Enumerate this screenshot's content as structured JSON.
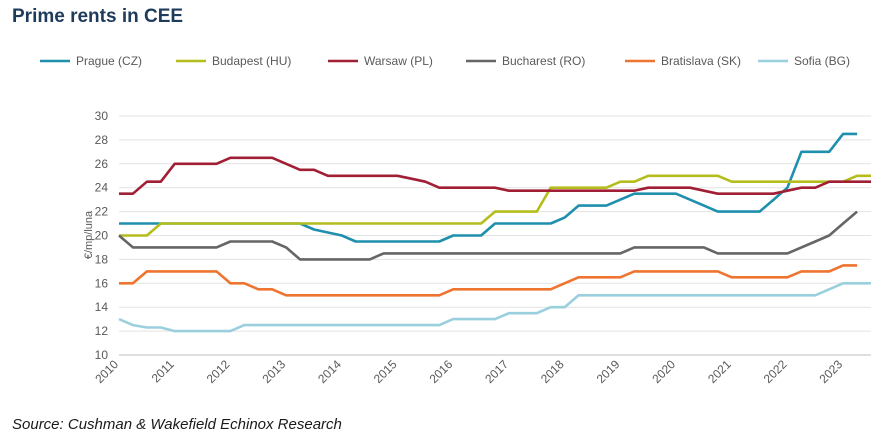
{
  "title": "Prime rents in CEE",
  "source": "Source: Cushman & Wakefield Echinox Research",
  "chart_data": {
    "type": "line",
    "ylabel": "€/mp/luna",
    "xlabel": "",
    "ylim": [
      10,
      30
    ],
    "xlim": [
      2010,
      2023.5
    ],
    "y_ticks": [
      10,
      12,
      14,
      16,
      18,
      20,
      22,
      24,
      26,
      28,
      30
    ],
    "x_ticks": [
      2010,
      2011,
      2012,
      2013,
      2014,
      2015,
      2016,
      2017,
      2018,
      2019,
      2020,
      2021,
      2022,
      2023
    ],
    "grid": "horizontal",
    "legend_position": "top",
    "series": [
      {
        "name": "Prague (CZ)",
        "color": "#1f8fae",
        "points": [
          [
            2010,
            21
          ],
          [
            2010.75,
            21
          ],
          [
            2010.75,
            21
          ],
          [
            2013.25,
            21
          ],
          [
            2013.5,
            20.5
          ],
          [
            2014,
            20
          ],
          [
            2014.25,
            19.5
          ],
          [
            2015.75,
            19.5
          ],
          [
            2016,
            20
          ],
          [
            2016.5,
            20
          ],
          [
            2016.75,
            21
          ],
          [
            2017.75,
            21
          ],
          [
            2018,
            21.5
          ],
          [
            2018.25,
            22.5
          ],
          [
            2018.75,
            22.5
          ],
          [
            2019.25,
            23.5
          ],
          [
            2020,
            23.5
          ],
          [
            2020.5,
            22.5
          ],
          [
            2020.75,
            22
          ],
          [
            2021.5,
            22
          ],
          [
            2021.75,
            23
          ],
          [
            2022,
            24
          ],
          [
            2022.25,
            27
          ],
          [
            2022.75,
            27
          ],
          [
            2023,
            28.5
          ],
          [
            2023.25,
            28.5
          ]
        ]
      },
      {
        "name": "Budapest (HU)",
        "color": "#b5bd1c",
        "points": [
          [
            2010,
            20
          ],
          [
            2010.5,
            20
          ],
          [
            2010.75,
            21
          ],
          [
            2016.5,
            21
          ],
          [
            2016.75,
            22
          ],
          [
            2017.5,
            22
          ],
          [
            2017.75,
            24
          ],
          [
            2018.75,
            24
          ],
          [
            2019,
            24.5
          ],
          [
            2019.25,
            24.5
          ],
          [
            2019.5,
            25
          ],
          [
            2020.75,
            25
          ],
          [
            2021,
            24.5
          ],
          [
            2023,
            24.5
          ],
          [
            2023.25,
            25
          ],
          [
            2023.5,
            25
          ]
        ]
      },
      {
        "name": "Warsaw (PL)",
        "color": "#a01f35",
        "points": [
          [
            2010,
            23.5
          ],
          [
            2010.25,
            23.5
          ],
          [
            2010.5,
            24.5
          ],
          [
            2010.75,
            24.5
          ],
          [
            2011,
            26
          ],
          [
            2011.75,
            26
          ],
          [
            2012,
            26.5
          ],
          [
            2012.75,
            26.5
          ],
          [
            2013,
            26
          ],
          [
            2013.25,
            25.5
          ],
          [
            2013.5,
            25.5
          ],
          [
            2013.75,
            25
          ],
          [
            2015,
            25
          ],
          [
            2015.25,
            24.75
          ],
          [
            2015.5,
            24.5
          ],
          [
            2015.75,
            24
          ],
          [
            2016.75,
            24
          ],
          [
            2017,
            23.75
          ],
          [
            2019.25,
            23.75
          ],
          [
            2019.5,
            24
          ],
          [
            2020.25,
            24
          ],
          [
            2020.5,
            23.75
          ],
          [
            2020.75,
            23.5
          ],
          [
            2021.75,
            23.5
          ],
          [
            2022,
            23.75
          ],
          [
            2022.25,
            24
          ],
          [
            2022.5,
            24
          ],
          [
            2022.75,
            24.5
          ],
          [
            2023.5,
            24.5
          ]
        ]
      },
      {
        "name": "Bucharest (RO)",
        "color": "#666666",
        "points": [
          [
            2010,
            20
          ],
          [
            2010.25,
            19
          ],
          [
            2011.75,
            19
          ],
          [
            2012,
            19.5
          ],
          [
            2012.75,
            19.5
          ],
          [
            2013,
            19
          ],
          [
            2013.25,
            18
          ],
          [
            2014.5,
            18
          ],
          [
            2014.75,
            18.5
          ],
          [
            2019,
            18.5
          ],
          [
            2019.25,
            19
          ],
          [
            2020.5,
            19
          ],
          [
            2020.75,
            18.5
          ],
          [
            2022,
            18.5
          ],
          [
            2022.5,
            19.5
          ],
          [
            2022.75,
            20
          ],
          [
            2023,
            21
          ],
          [
            2023.25,
            22
          ]
        ]
      },
      {
        "name": "Bratislava (SK)",
        "color": "#ee7430",
        "points": [
          [
            2010,
            16
          ],
          [
            2010.25,
            16
          ],
          [
            2010.5,
            17
          ],
          [
            2011.75,
            17
          ],
          [
            2012,
            16
          ],
          [
            2012.25,
            16
          ],
          [
            2012.5,
            15.5
          ],
          [
            2012.75,
            15.5
          ],
          [
            2013,
            15
          ],
          [
            2015.75,
            15
          ],
          [
            2016,
            15.5
          ],
          [
            2017.75,
            15.5
          ],
          [
            2018,
            16
          ],
          [
            2018.25,
            16.5
          ],
          [
            2019,
            16.5
          ],
          [
            2019.25,
            17
          ],
          [
            2020.75,
            17
          ],
          [
            2021,
            16.5
          ],
          [
            2022,
            16.5
          ],
          [
            2022.25,
            17
          ],
          [
            2022.75,
            17
          ],
          [
            2023,
            17.5
          ],
          [
            2023.25,
            17.5
          ]
        ]
      },
      {
        "name": "Sofia (BG)",
        "color": "#9ad0de",
        "points": [
          [
            2010,
            13
          ],
          [
            2010.25,
            12.5
          ],
          [
            2010.5,
            12.3
          ],
          [
            2010.75,
            12.3
          ],
          [
            2011,
            12
          ],
          [
            2012,
            12
          ],
          [
            2012.25,
            12.5
          ],
          [
            2015.75,
            12.5
          ],
          [
            2016,
            13
          ],
          [
            2016.75,
            13
          ],
          [
            2017,
            13.5
          ],
          [
            2017.5,
            13.5
          ],
          [
            2017.75,
            14
          ],
          [
            2018,
            14
          ],
          [
            2018.25,
            15
          ],
          [
            2022.5,
            15
          ],
          [
            2022.75,
            15.5
          ],
          [
            2023,
            16
          ],
          [
            2023.5,
            16
          ]
        ]
      }
    ]
  }
}
